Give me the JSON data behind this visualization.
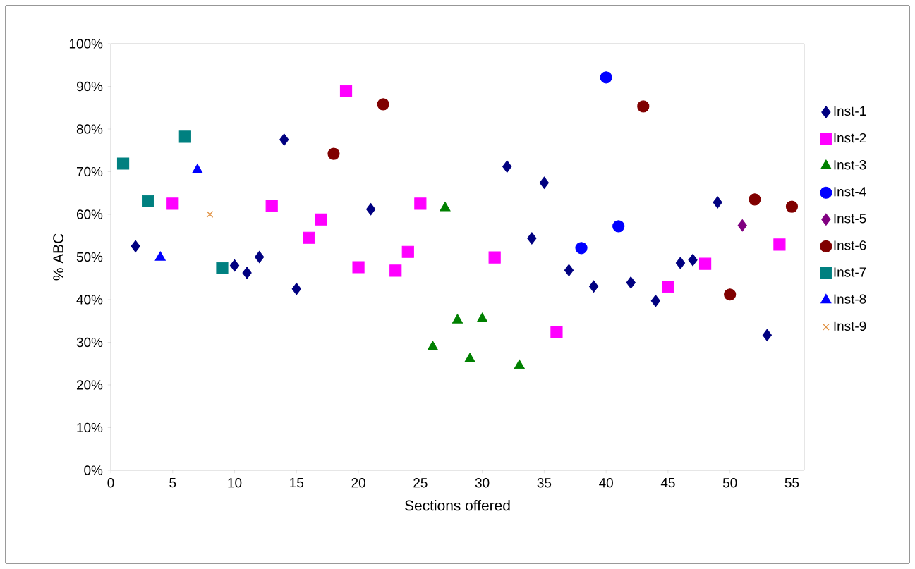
{
  "chart_data": {
    "type": "scatter",
    "xlabel": "Sections offered",
    "ylabel": "% ABC",
    "xlim": [
      0,
      56
    ],
    "ylim": [
      0,
      100
    ],
    "xticks": [
      0,
      5,
      10,
      15,
      20,
      25,
      30,
      35,
      40,
      45,
      50,
      55
    ],
    "yticks": [
      {
        "value": 0,
        "label": "0%"
      },
      {
        "value": 10,
        "label": "10%"
      },
      {
        "value": 20,
        "label": "20%"
      },
      {
        "value": 30,
        "label": "30%"
      },
      {
        "value": 40,
        "label": "40%"
      },
      {
        "value": 50,
        "label": "50%"
      },
      {
        "value": 60,
        "label": "60%"
      },
      {
        "value": 70,
        "label": "70%"
      },
      {
        "value": 80,
        "label": "80%"
      },
      {
        "value": 90,
        "label": "90%"
      },
      {
        "value": 100,
        "label": "100%"
      }
    ],
    "legend": "right",
    "grid": false,
    "series": [
      {
        "name": "Inst-1",
        "color": "#000080",
        "marker": "diamond",
        "x": [
          2,
          10,
          11,
          12,
          14,
          15,
          21,
          32,
          34,
          35,
          37,
          39,
          42,
          44,
          46,
          47,
          49,
          53
        ],
        "values": [
          52.5,
          48,
          46.3,
          50,
          77.5,
          42.5,
          61.2,
          71.2,
          54.4,
          67.4,
          46.9,
          43.1,
          44,
          39.7,
          48.6,
          49.3,
          62.8,
          31.7
        ]
      },
      {
        "name": "Inst-2",
        "color": "#ff00ff",
        "marker": "square",
        "x": [
          5,
          13,
          16,
          17,
          19,
          20,
          23,
          24,
          25,
          31,
          36,
          45,
          48,
          54
        ],
        "values": [
          62.5,
          62,
          54.5,
          58.8,
          88.9,
          47.6,
          46.8,
          51.2,
          62.5,
          49.9,
          32.4,
          43,
          48.4,
          52.9
        ]
      },
      {
        "name": "Inst-3",
        "color": "#008000",
        "marker": "triangle",
        "x": [
          26,
          27,
          28,
          29,
          30,
          33
        ],
        "values": [
          28.9,
          61.5,
          35.2,
          26.1,
          35.5,
          24.5
        ]
      },
      {
        "name": "Inst-4",
        "color": "#0000ff",
        "marker": "circle",
        "x": [
          38,
          40,
          41
        ],
        "values": [
          52.1,
          92.1,
          57.2
        ]
      },
      {
        "name": "Inst-5",
        "color": "#800080",
        "marker": "diamond",
        "x": [
          51
        ],
        "values": [
          57.4
        ]
      },
      {
        "name": "Inst-6",
        "color": "#800000",
        "marker": "circle",
        "x": [
          18,
          22,
          43,
          50,
          52,
          55
        ],
        "values": [
          74.2,
          85.8,
          85.3,
          41.2,
          63.5,
          61.8
        ]
      },
      {
        "name": "Inst-7",
        "color": "#008080",
        "marker": "square",
        "x": [
          1,
          3,
          6,
          9
        ],
        "values": [
          71.9,
          63.1,
          78.2,
          47.4
        ]
      },
      {
        "name": "Inst-8",
        "color": "#0000ff",
        "marker": "triangle",
        "x": [
          4,
          7
        ],
        "values": [
          49.9,
          70.4
        ]
      },
      {
        "name": "Inst-9",
        "color": "#e09040",
        "marker": "cross",
        "x": [
          8
        ],
        "values": [
          60
        ]
      }
    ]
  }
}
